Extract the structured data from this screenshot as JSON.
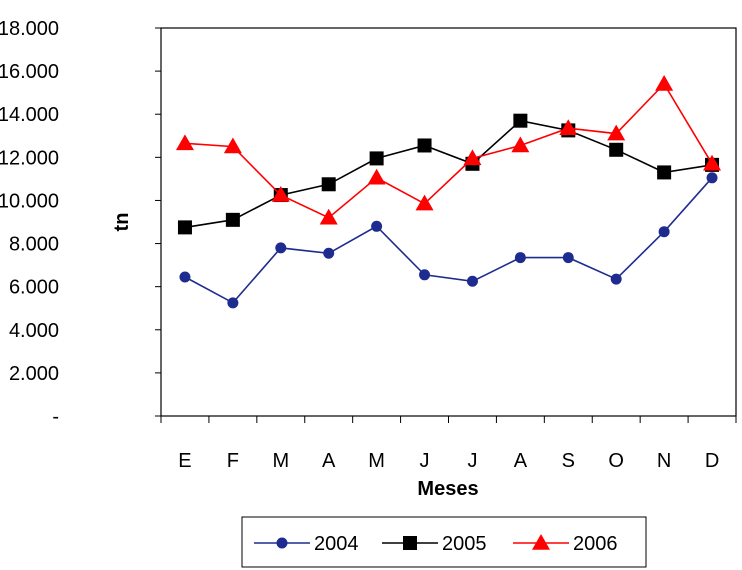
{
  "chart_data": {
    "type": "line",
    "title": "",
    "xlabel": "Meses",
    "ylabel": "tn",
    "categories": [
      "E",
      "F",
      "M",
      "A",
      "M",
      "J",
      "J",
      "A",
      "S",
      "O",
      "N",
      "D"
    ],
    "ylim": [
      0,
      18000
    ],
    "yticks": [
      {
        "value": 0,
        "label": "-"
      },
      {
        "value": 2000,
        "label": "2.000"
      },
      {
        "value": 4000,
        "label": "4.000"
      },
      {
        "value": 6000,
        "label": "6.000"
      },
      {
        "value": 8000,
        "label": "8.000"
      },
      {
        "value": 10000,
        "label": "10.000"
      },
      {
        "value": 12000,
        "label": "12.000"
      },
      {
        "value": 14000,
        "label": "14.000"
      },
      {
        "value": 16000,
        "label": "16.000"
      },
      {
        "value": 18000,
        "label": "18.000"
      }
    ],
    "grid": false,
    "legend_position": "bottom",
    "series": [
      {
        "name": "2004",
        "color": "#1f2c8f",
        "marker": "circle",
        "values": [
          6450,
          5250,
          7800,
          7550,
          8800,
          6550,
          6250,
          7350,
          7350,
          6350,
          8550,
          11050
        ]
      },
      {
        "name": "2005",
        "color": "#000000",
        "marker": "square",
        "values": [
          8750,
          9100,
          10250,
          10750,
          11950,
          12550,
          11700,
          13700,
          13250,
          12350,
          11300,
          11650
        ]
      },
      {
        "name": "2006",
        "color": "#ff0000",
        "marker": "triangle",
        "values": [
          12650,
          12500,
          10250,
          9200,
          11050,
          9850,
          11950,
          12550,
          13350,
          13100,
          15400,
          11700
        ]
      }
    ]
  }
}
